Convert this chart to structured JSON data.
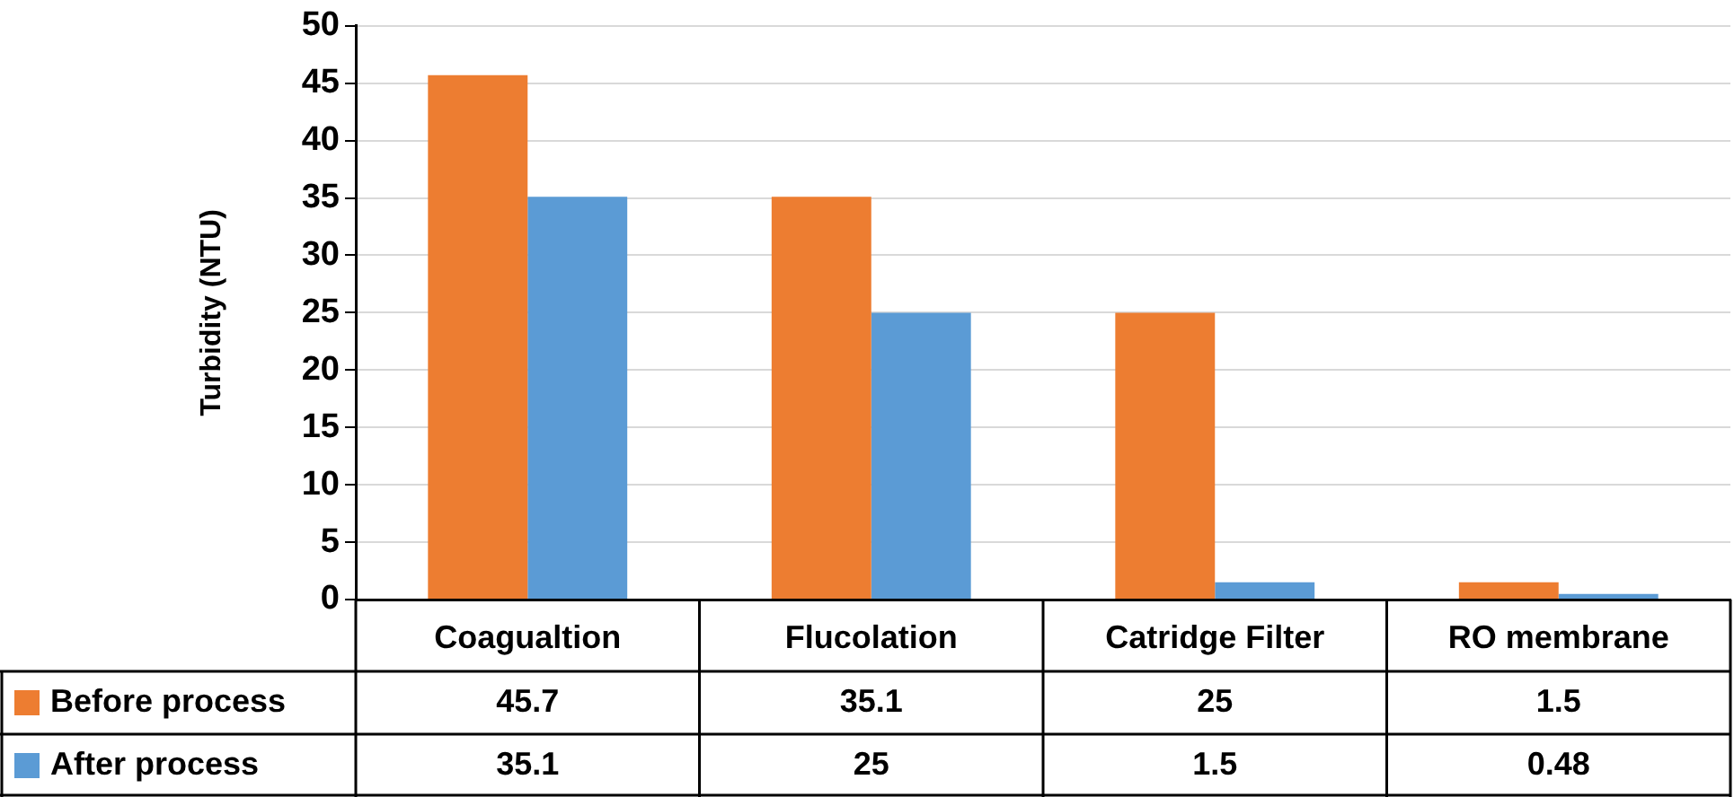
{
  "chart_data": {
    "type": "bar",
    "ylabel": "Turbidity (NTU)",
    "categories": [
      "Coagualtion",
      "Flucolation",
      "Catridge Filter",
      "RO membrane"
    ],
    "series": [
      {
        "name": "Before process",
        "color": "#ed7d31",
        "values": [
          45.7,
          35.1,
          25,
          1.5
        ]
      },
      {
        "name": "After process",
        "color": "#5b9bd5",
        "values": [
          35.1,
          25,
          1.5,
          0.48
        ]
      }
    ],
    "ylim": [
      0,
      50
    ],
    "yticks": [
      0,
      5,
      10,
      15,
      20,
      25,
      30,
      35,
      40,
      45,
      50
    ],
    "grid": "y",
    "legend": "bottom",
    "data_labels": true
  }
}
